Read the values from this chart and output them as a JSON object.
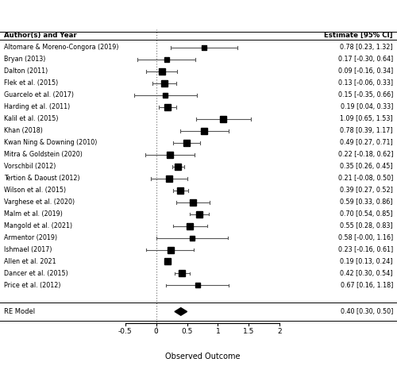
{
  "studies": [
    {
      "author": "Altomare & Moreno-Congora (2019)",
      "est": 0.78,
      "ci_lo": 0.23,
      "ci_hi": 1.32,
      "label": "0.78 [0.23, 1.32]"
    },
    {
      "author": "Bryan (2013)",
      "est": 0.17,
      "ci_lo": -0.3,
      "ci_hi": 0.64,
      "label": "0.17 [-0.30, 0.64]"
    },
    {
      "author": "Dalton (2011)",
      "est": 0.09,
      "ci_lo": -0.16,
      "ci_hi": 0.34,
      "label": "0.09 [-0.16, 0.34]"
    },
    {
      "author": "Flek et al. (2015)",
      "est": 0.13,
      "ci_lo": -0.06,
      "ci_hi": 0.33,
      "label": "0.13 [-0.06, 0.33]"
    },
    {
      "author": "Guarcelo et al. (2017)",
      "est": 0.15,
      "ci_lo": -0.35,
      "ci_hi": 0.66,
      "label": "0.15 [-0.35, 0.66]"
    },
    {
      "author": "Harding et al. (2011)",
      "est": 0.19,
      "ci_lo": 0.04,
      "ci_hi": 0.33,
      "label": "0.19 [0.04, 0.33]"
    },
    {
      "author": "Kalil et al. (2015)",
      "est": 1.09,
      "ci_lo": 0.65,
      "ci_hi": 1.53,
      "label": "1.09 [0.65, 1.53]"
    },
    {
      "author": "Khan (2018)",
      "est": 0.78,
      "ci_lo": 0.39,
      "ci_hi": 1.17,
      "label": "0.78 [0.39, 1.17]"
    },
    {
      "author": "Kwan Ning & Downing (2010)",
      "est": 0.49,
      "ci_lo": 0.27,
      "ci_hi": 0.71,
      "label": "0.49 [0.27, 0.71]"
    },
    {
      "author": "Mitra & Goldstein (2020)",
      "est": 0.22,
      "ci_lo": -0.18,
      "ci_hi": 0.62,
      "label": "0.22 [-0.18, 0.62]"
    },
    {
      "author": "Vorschbil (2012)",
      "est": 0.35,
      "ci_lo": 0.26,
      "ci_hi": 0.45,
      "label": "0.35 [0.26, 0.45]"
    },
    {
      "author": "Tertion & Daoust (2012)",
      "est": 0.21,
      "ci_lo": -0.08,
      "ci_hi": 0.5,
      "label": "0.21 [-0.08, 0.50]"
    },
    {
      "author": "Wilson et al. (2015)",
      "est": 0.39,
      "ci_lo": 0.27,
      "ci_hi": 0.52,
      "label": "0.39 [0.27, 0.52]"
    },
    {
      "author": "Varghese et al. (2020)",
      "est": 0.59,
      "ci_lo": 0.33,
      "ci_hi": 0.86,
      "label": "0.59 [0.33, 0.86]"
    },
    {
      "author": "Malm et al. (2019)",
      "est": 0.7,
      "ci_lo": 0.54,
      "ci_hi": 0.85,
      "label": "0.70 [0.54, 0.85]"
    },
    {
      "author": "Mangold et al. (2021)",
      "est": 0.55,
      "ci_lo": 0.28,
      "ci_hi": 0.83,
      "label": "0.55 [0.28, 0.83]"
    },
    {
      "author": "Armentor (2019)",
      "est": 0.58,
      "ci_lo": -0.0,
      "ci_hi": 1.16,
      "label": "0.58 [-0.00, 1.16]"
    },
    {
      "author": "Ishmael (2017)",
      "est": 0.23,
      "ci_lo": -0.16,
      "ci_hi": 0.61,
      "label": "0.23 [-0.16, 0.61]"
    },
    {
      "author": "Allen et al. 2021",
      "est": 0.19,
      "ci_lo": 0.13,
      "ci_hi": 0.24,
      "label": "0.19 [0.13, 0.24]"
    },
    {
      "author": "Dancer et al. (2015)",
      "est": 0.42,
      "ci_lo": 0.3,
      "ci_hi": 0.54,
      "label": "0.42 [0.30, 0.54]"
    },
    {
      "author": "Price et al. (2012)",
      "est": 0.67,
      "ci_lo": 0.16,
      "ci_hi": 1.18,
      "label": "0.67 [0.16, 1.18]"
    }
  ],
  "re_model": {
    "est": 0.4,
    "ci_lo": 0.3,
    "ci_hi": 0.5,
    "label": "0.40 [0.30, 0.50]"
  },
  "xlim": [
    -0.6,
    2.1
  ],
  "xticks": [
    -0.5,
    0,
    0.5,
    1,
    1.5,
    2
  ],
  "xlabel": "Observed Outcome",
  "header_author": "Author(s) and Year",
  "header_est": "Estimate [95% CI]",
  "bg_color": "#ffffff",
  "author_fontsize": 5.8,
  "est_fontsize": 5.8,
  "header_fontsize": 6.2
}
